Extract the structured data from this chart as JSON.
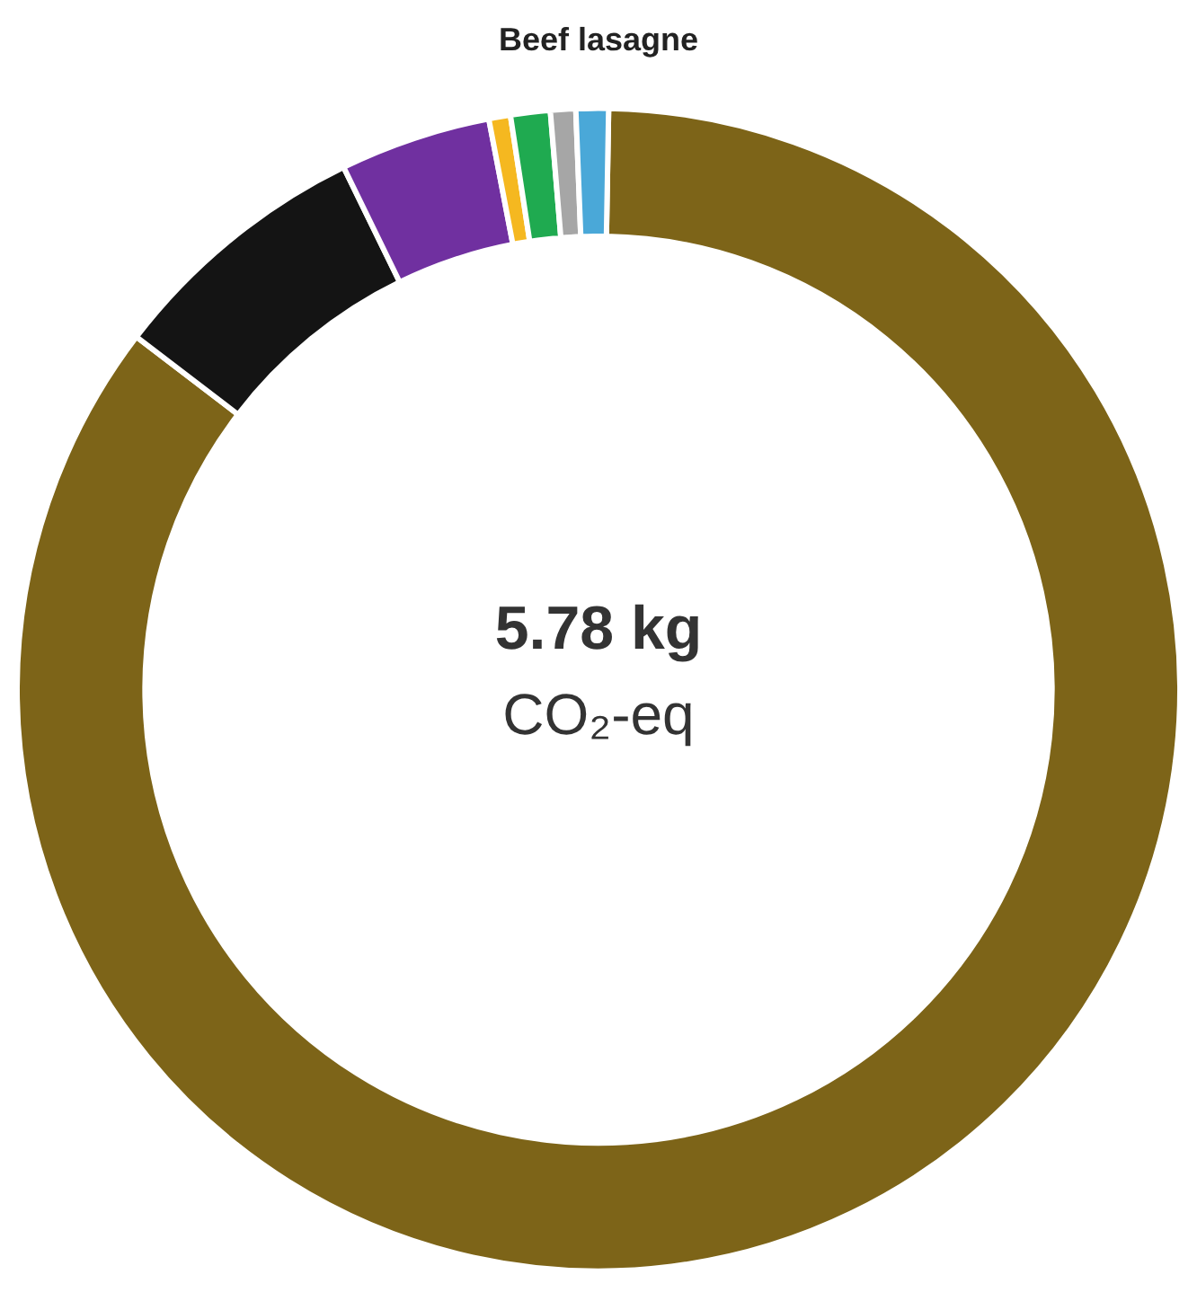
{
  "chart_data": {
    "type": "donut",
    "title": "Beef lasagne",
    "categories": [
      null,
      null,
      null,
      null,
      null,
      null,
      null
    ],
    "values": [
      85.1,
      7.4,
      4.2,
      0.6,
      1.1,
      0.7,
      0.9
    ],
    "colors": [
      "#7d6418",
      "#141414",
      "#7030a0",
      "#f5b820",
      "#1faa50",
      "#a6a6a6",
      "#4aa8d8"
    ],
    "annotations": [
      "5.78 kg",
      "CO₂-eq"
    ],
    "legend": false
  }
}
